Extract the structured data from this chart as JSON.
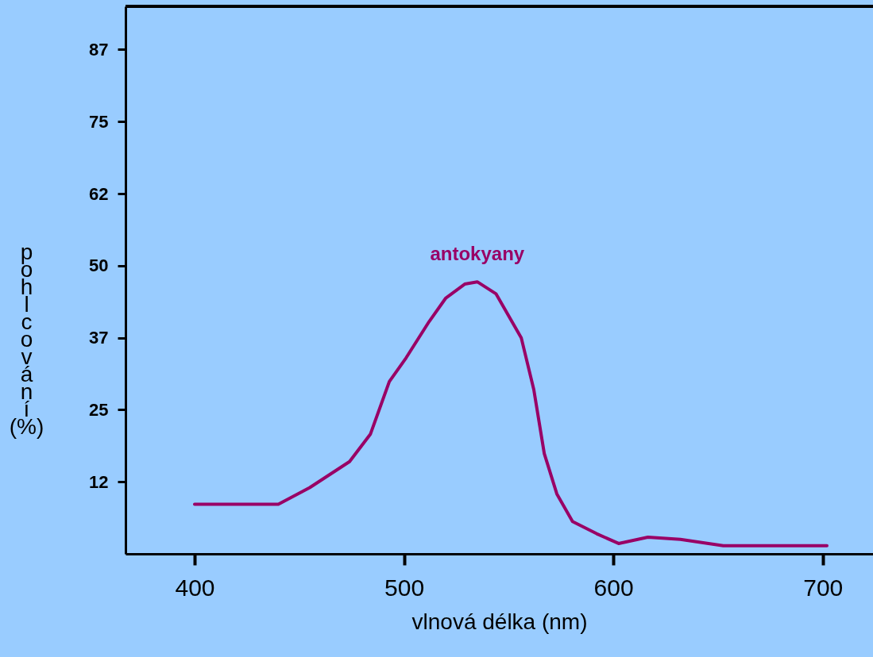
{
  "chart_data": {
    "type": "line",
    "xlabel": "vlnová délka (nm)",
    "ylabel": "pohlcování (%)",
    "x": [
      400,
      440,
      455,
      474,
      484,
      493,
      501,
      512,
      520,
      529,
      535,
      544,
      556,
      562,
      567,
      573,
      580.5,
      592,
      602.5,
      616.5,
      632,
      652.5,
      702
    ],
    "series": [
      {
        "color": "#990066",
        "values": [
          8.6,
          8.6,
          11.5,
          16,
          20.8,
          29.9,
          34,
          40.3,
          44.4,
          46.8,
          47.2,
          45.1,
          37.5,
          28.5,
          17.4,
          10.4,
          5.6,
          3.5,
          1.8,
          2.9,
          2.5,
          1.4,
          1.4
        ]
      }
    ],
    "xlim": [
      367,
      724
    ],
    "xticks": [
      400,
      500,
      600,
      700
    ],
    "ylim": [
      0,
      95
    ],
    "yticks": [
      {
        "value": 12.5,
        "label": "12"
      },
      25,
      {
        "value": 37.5,
        "label": "37"
      },
      50,
      {
        "value": 62.5,
        "label": "62"
      },
      75,
      {
        "value": 87.5,
        "label": "87"
      }
    ],
    "annotations": [
      "antokyany"
    ],
    "grid": false
  }
}
